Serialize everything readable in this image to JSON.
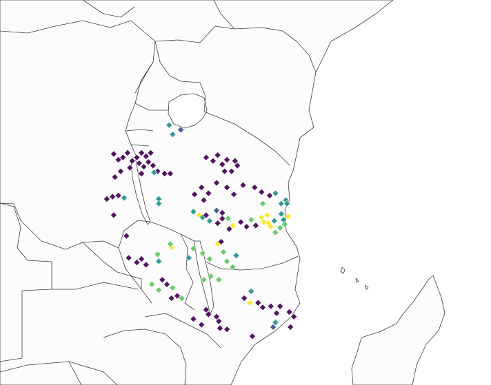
{
  "colors": {
    "scale": [
      "#440154",
      "#3b528b",
      "#21918c",
      "#5ec962",
      "#fde725"
    ]
  },
  "points": [
    {
      "lon": 31.95,
      "lat": -1.35,
      "v": 0.45
    },
    {
      "lon": 32.45,
      "lat": -1.55,
      "v": 0.35
    },
    {
      "lon": 32.1,
      "lat": -1.75,
      "v": 0.55
    },
    {
      "lon": 29.55,
      "lat": -2.6,
      "v": 0.0
    },
    {
      "lon": 29.75,
      "lat": -2.85,
      "v": 0.0
    },
    {
      "lon": 29.95,
      "lat": -2.75,
      "v": 0.0
    },
    {
      "lon": 30.15,
      "lat": -2.55,
      "v": 0.0
    },
    {
      "lon": 30.35,
      "lat": -2.9,
      "v": 0.0
    },
    {
      "lon": 30.55,
      "lat": -2.75,
      "v": 0.0
    },
    {
      "lon": 30.75,
      "lat": -2.55,
      "v": 0.0
    },
    {
      "lon": 30.95,
      "lat": -2.7,
      "v": 0.0
    },
    {
      "lon": 31.15,
      "lat": -2.55,
      "v": 0.0
    },
    {
      "lon": 30.65,
      "lat": -3.0,
      "v": 0.0
    },
    {
      "lon": 30.85,
      "lat": -3.15,
      "v": 0.0
    },
    {
      "lon": 31.05,
      "lat": -2.95,
      "v": 0.0
    },
    {
      "lon": 31.25,
      "lat": -3.1,
      "v": 0.0
    },
    {
      "lon": 31.45,
      "lat": -3.35,
      "v": 0.0
    },
    {
      "lon": 31.75,
      "lat": -3.45,
      "v": 0.0
    },
    {
      "lon": 32.0,
      "lat": -3.45,
      "v": 0.0
    },
    {
      "lon": 30.75,
      "lat": -3.45,
      "v": 0.0
    },
    {
      "lon": 31.3,
      "lat": -3.4,
      "v": 0.45
    },
    {
      "lon": 30.25,
      "lat": -3.2,
      "v": 0.0
    },
    {
      "lon": 29.85,
      "lat": -3.35,
      "v": 0.0
    },
    {
      "lon": 29.6,
      "lat": -3.6,
      "v": 0.0
    },
    {
      "lon": 29.25,
      "lat": -4.55,
      "v": 0.0
    },
    {
      "lon": 29.5,
      "lat": -4.45,
      "v": 0.0
    },
    {
      "lon": 29.75,
      "lat": -4.4,
      "v": 0.0
    },
    {
      "lon": 30.0,
      "lat": -4.5,
      "v": 0.5
    },
    {
      "lon": 29.55,
      "lat": -5.25,
      "v": 0.0
    },
    {
      "lon": 30.1,
      "lat": -6.15,
      "v": 0.0
    },
    {
      "lon": 31.5,
      "lat": -4.55,
      "v": 0.5
    },
    {
      "lon": 31.5,
      "lat": -4.75,
      "v": 0.5
    },
    {
      "lon": 33.05,
      "lat": -4.35,
      "v": 0.0
    },
    {
      "lon": 33.35,
      "lat": -4.05,
      "v": 0.0
    },
    {
      "lon": 33.45,
      "lat": -4.6,
      "v": 0.0
    },
    {
      "lon": 33.65,
      "lat": -4.3,
      "v": 0.0
    },
    {
      "lon": 33.55,
      "lat": -2.75,
      "v": 0.0
    },
    {
      "lon": 33.85,
      "lat": -2.9,
      "v": 0.0
    },
    {
      "lon": 34.05,
      "lat": -2.65,
      "v": 0.0
    },
    {
      "lon": 34.25,
      "lat": -3.05,
      "v": 0.0
    },
    {
      "lon": 34.45,
      "lat": -2.85,
      "v": 0.0
    },
    {
      "lon": 34.65,
      "lat": -3.35,
      "v": 0.0
    },
    {
      "lon": 34.8,
      "lat": -2.9,
      "v": 0.0
    },
    {
      "lon": 34.9,
      "lat": -3.1,
      "v": 0.0
    },
    {
      "lon": 34.35,
      "lat": -3.35,
      "v": 0.0
    },
    {
      "lon": 34.0,
      "lat": -3.85,
      "v": 0.0
    },
    {
      "lon": 34.45,
      "lat": -4.05,
      "v": 0.0
    },
    {
      "lon": 34.75,
      "lat": -4.35,
      "v": 0.0
    },
    {
      "lon": 35.15,
      "lat": -3.95,
      "v": 0.0
    },
    {
      "lon": 35.65,
      "lat": -4.05,
      "v": 0.0
    },
    {
      "lon": 35.95,
      "lat": -4.25,
      "v": 0.0
    },
    {
      "lon": 36.3,
      "lat": -4.4,
      "v": 0.0
    },
    {
      "lon": 36.55,
      "lat": -4.3,
      "v": 0.45
    },
    {
      "lon": 36.8,
      "lat": -4.75,
      "v": 0.5
    },
    {
      "lon": 37.0,
      "lat": -4.6,
      "v": 0.45
    },
    {
      "lon": 37.05,
      "lat": -4.75,
      "v": 0.55
    },
    {
      "lon": 36.0,
      "lat": -4.75,
      "v": 0.75
    },
    {
      "lon": 33.0,
      "lat": -5.1,
      "v": 0.5
    },
    {
      "lon": 33.25,
      "lat": -5.25,
      "v": 1.0
    },
    {
      "lon": 33.4,
      "lat": -5.35,
      "v": 0.5
    },
    {
      "lon": 33.55,
      "lat": -5.25,
      "v": 0.0
    },
    {
      "lon": 33.7,
      "lat": -5.5,
      "v": 0.5
    },
    {
      "lon": 34.05,
      "lat": -5.6,
      "v": 0.0
    },
    {
      "lon": 34.25,
      "lat": -5.4,
      "v": 0.0
    },
    {
      "lon": 34.0,
      "lat": -5.05,
      "v": 0.25
    },
    {
      "lon": 34.25,
      "lat": -5.15,
      "v": 0.0
    },
    {
      "lon": 34.5,
      "lat": -5.4,
      "v": 0.75
    },
    {
      "lon": 34.55,
      "lat": -5.85,
      "v": 0.0
    },
    {
      "lon": 34.7,
      "lat": -5.7,
      "v": 1.0
    },
    {
      "lon": 35.05,
      "lat": -5.55,
      "v": 0.0
    },
    {
      "lon": 35.3,
      "lat": -5.75,
      "v": 0.0
    },
    {
      "lon": 35.5,
      "lat": -5.45,
      "v": 0.75
    },
    {
      "lon": 35.7,
      "lat": -5.7,
      "v": 0.0
    },
    {
      "lon": 35.95,
      "lat": -5.35,
      "v": 1.0
    },
    {
      "lon": 36.05,
      "lat": -5.55,
      "v": 1.0
    },
    {
      "lon": 36.2,
      "lat": -5.25,
      "v": 1.0
    },
    {
      "lon": 36.25,
      "lat": -5.6,
      "v": 1.0
    },
    {
      "lon": 36.35,
      "lat": -5.75,
      "v": 1.0
    },
    {
      "lon": 36.5,
      "lat": -5.5,
      "v": 0.5
    },
    {
      "lon": 36.75,
      "lat": -5.8,
      "v": 0.75
    },
    {
      "lon": 36.9,
      "lat": -5.45,
      "v": 0.5
    },
    {
      "lon": 36.95,
      "lat": -5.65,
      "v": 0.75
    },
    {
      "lon": 36.55,
      "lat": -6.0,
      "v": 0.75
    },
    {
      "lon": 37.1,
      "lat": -5.3,
      "v": 1.0
    },
    {
      "lon": 36.8,
      "lat": -5.2,
      "v": 0.5
    },
    {
      "lon": 32.05,
      "lat": -6.65,
      "v": 1.0
    },
    {
      "lon": 31.45,
      "lat": -6.95,
      "v": 0.75
    },
    {
      "lon": 31.5,
      "lat": -7.25,
      "v": 0.5
    },
    {
      "lon": 33.0,
      "lat": -6.7,
      "v": 0.75
    },
    {
      "lon": 32.8,
      "lat": -7.1,
      "v": 0.5
    },
    {
      "lon": 33.4,
      "lat": -6.9,
      "v": 0.75
    },
    {
      "lon": 33.7,
      "lat": -7.15,
      "v": 0.75
    },
    {
      "lon": 34.05,
      "lat": -6.5,
      "v": 1.0
    },
    {
      "lon": 34.3,
      "lat": -6.85,
      "v": 0.75
    },
    {
      "lon": 34.45,
      "lat": -7.25,
      "v": 0.75
    },
    {
      "lon": 34.7,
      "lat": -7.5,
      "v": 0.75
    },
    {
      "lon": 34.85,
      "lat": -7.0,
      "v": 0.5
    },
    {
      "lon": 34.2,
      "lat": -6.4,
      "v": 0.0
    },
    {
      "lon": 32.0,
      "lat": -6.5,
      "v": 0.75
    },
    {
      "lon": 30.2,
      "lat": -7.1,
      "v": 0.0
    },
    {
      "lon": 30.55,
      "lat": -7.3,
      "v": 0.0
    },
    {
      "lon": 30.75,
      "lat": -7.15,
      "v": 0.0
    },
    {
      "lon": 30.95,
      "lat": -7.4,
      "v": 0.0
    },
    {
      "lon": 31.2,
      "lat": -8.25,
      "v": 0.75
    },
    {
      "lon": 31.5,
      "lat": -8.5,
      "v": 0.75
    },
    {
      "lon": 31.65,
      "lat": -8.05,
      "v": 0.0
    },
    {
      "lon": 31.85,
      "lat": -8.25,
      "v": 0.0
    },
    {
      "lon": 32.1,
      "lat": -8.4,
      "v": 0.75
    },
    {
      "lon": 32.3,
      "lat": -8.75,
      "v": 0.0
    },
    {
      "lon": 32.05,
      "lat": -8.85,
      "v": 0.0
    },
    {
      "lon": 32.5,
      "lat": -8.85,
      "v": 0.75
    },
    {
      "lon": 33.45,
      "lat": -8.05,
      "v": 0.75
    },
    {
      "lon": 33.75,
      "lat": -7.9,
      "v": 0.75
    },
    {
      "lon": 34.1,
      "lat": -8.05,
      "v": 0.75
    },
    {
      "lon": 35.5,
      "lat": -8.55,
      "v": 0.5
    },
    {
      "lon": 35.2,
      "lat": -8.85,
      "v": 0.0
    },
    {
      "lon": 35.45,
      "lat": -9.05,
      "v": 1.0
    },
    {
      "lon": 35.8,
      "lat": -9.05,
      "v": 0.0
    },
    {
      "lon": 36.0,
      "lat": -9.25,
      "v": 0.0
    },
    {
      "lon": 36.35,
      "lat": -9.2,
      "v": 0.0
    },
    {
      "lon": 36.6,
      "lat": -9.5,
      "v": 0.0
    },
    {
      "lon": 36.75,
      "lat": -9.2,
      "v": 0.0
    },
    {
      "lon": 37.15,
      "lat": -9.45,
      "v": 0.0
    },
    {
      "lon": 37.35,
      "lat": -9.65,
      "v": 0.0
    },
    {
      "lon": 36.55,
      "lat": -9.9,
      "v": 0.5
    },
    {
      "lon": 36.45,
      "lat": -10.1,
      "v": 0.25
    },
    {
      "lon": 37.2,
      "lat": -10.1,
      "v": 0.0
    },
    {
      "lon": 34.1,
      "lat": -9.85,
      "v": 0.0
    },
    {
      "lon": 34.15,
      "lat": -10.15,
      "v": 0.0
    },
    {
      "lon": 34.45,
      "lat": -10.2,
      "v": 0.0
    },
    {
      "lon": 35.55,
      "lat": -10.5,
      "v": 0.0
    },
    {
      "lon": 33.55,
      "lat": -9.35,
      "v": 0.0
    },
    {
      "lon": 33.65,
      "lat": -9.55,
      "v": 0.0
    },
    {
      "lon": 33.0,
      "lat": -9.75,
      "v": 0.0
    },
    {
      "lon": 33.35,
      "lat": -10.0,
      "v": 0.0
    },
    {
      "lon": 34.0,
      "lat": -9.65,
      "v": 0.0
    }
  ]
}
